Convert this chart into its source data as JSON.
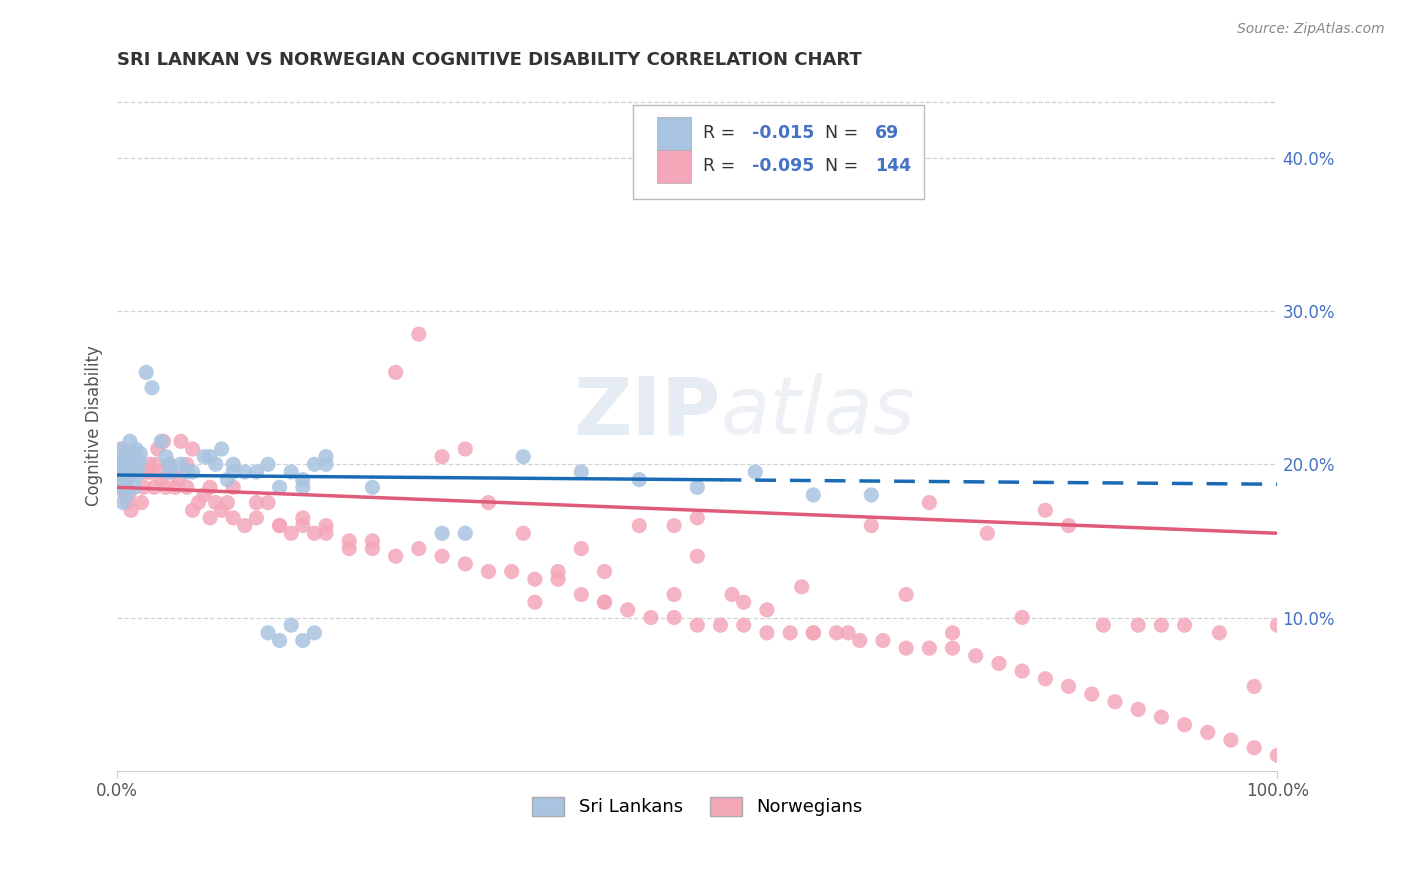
{
  "title": "SRI LANKAN VS NORWEGIAN COGNITIVE DISABILITY CORRELATION CHART",
  "source": "Source: ZipAtlas.com",
  "ylabel": "Cognitive Disability",
  "right_yticks": [
    "10.0%",
    "20.0%",
    "30.0%",
    "40.0%"
  ],
  "right_ytick_vals": [
    0.1,
    0.2,
    0.3,
    0.4
  ],
  "watermark_zip": "ZIP",
  "watermark_atlas": "atlas",
  "sri_lankan_color": "#a8c4e0",
  "norwegian_color": "#f4a7b9",
  "sri_lankan_line_color": "#1a6bb5",
  "norwegian_line_color": "#e05a7a",
  "xmin": 0.0,
  "xmax": 1.0,
  "ymin": 0.0,
  "ymax": 0.45,
  "background_color": "#ffffff",
  "grid_color": "#c8c8c8",
  "legend_label_sri": "Sri Lankans",
  "legend_label_nor": "Norwegians",
  "sri_lankan_x": [
    0.001,
    0.002,
    0.003,
    0.004,
    0.005,
    0.006,
    0.007,
    0.008,
    0.009,
    0.01,
    0.011,
    0.012,
    0.013,
    0.014,
    0.015,
    0.016,
    0.017,
    0.018,
    0.019,
    0.02,
    0.002,
    0.003,
    0.004,
    0.005,
    0.006,
    0.007,
    0.008,
    0.009,
    0.025,
    0.03,
    0.038,
    0.042,
    0.045,
    0.055,
    0.06,
    0.065,
    0.075,
    0.08,
    0.085,
    0.09,
    0.095,
    0.1,
    0.11,
    0.12,
    0.13,
    0.15,
    0.16,
    0.17,
    0.18,
    0.22,
    0.13,
    0.14,
    0.15,
    0.16,
    0.17,
    0.045,
    0.1,
    0.14,
    0.16,
    0.18,
    0.28,
    0.3,
    0.35,
    0.4,
    0.45,
    0.5,
    0.55,
    0.6,
    0.65
  ],
  "sri_lankan_y": [
    0.19,
    0.185,
    0.2,
    0.195,
    0.21,
    0.188,
    0.205,
    0.192,
    0.198,
    0.202,
    0.215,
    0.208,
    0.195,
    0.2,
    0.185,
    0.21,
    0.193,
    0.198,
    0.202,
    0.207,
    0.185,
    0.195,
    0.202,
    0.175,
    0.195,
    0.185,
    0.18,
    0.195,
    0.26,
    0.25,
    0.215,
    0.205,
    0.2,
    0.2,
    0.195,
    0.195,
    0.205,
    0.205,
    0.2,
    0.21,
    0.19,
    0.2,
    0.195,
    0.195,
    0.2,
    0.195,
    0.185,
    0.2,
    0.205,
    0.185,
    0.09,
    0.085,
    0.095,
    0.085,
    0.09,
    0.195,
    0.195,
    0.185,
    0.19,
    0.2,
    0.155,
    0.155,
    0.205,
    0.195,
    0.19,
    0.185,
    0.195,
    0.18,
    0.18
  ],
  "norwegian_x": [
    0.001,
    0.002,
    0.003,
    0.004,
    0.005,
    0.006,
    0.007,
    0.008,
    0.009,
    0.01,
    0.011,
    0.012,
    0.003,
    0.004,
    0.005,
    0.006,
    0.007,
    0.008,
    0.009,
    0.01,
    0.021,
    0.022,
    0.023,
    0.025,
    0.027,
    0.028,
    0.03,
    0.032,
    0.033,
    0.035,
    0.038,
    0.04,
    0.042,
    0.045,
    0.047,
    0.05,
    0.053,
    0.055,
    0.06,
    0.065,
    0.065,
    0.07,
    0.075,
    0.08,
    0.085,
    0.09,
    0.095,
    0.1,
    0.11,
    0.12,
    0.13,
    0.14,
    0.15,
    0.16,
    0.17,
    0.18,
    0.2,
    0.22,
    0.24,
    0.26,
    0.28,
    0.3,
    0.32,
    0.35,
    0.38,
    0.4,
    0.42,
    0.45,
    0.48,
    0.5,
    0.53,
    0.56,
    0.59,
    0.6,
    0.63,
    0.65,
    0.68,
    0.7,
    0.72,
    0.75,
    0.78,
    0.8,
    0.82,
    0.85,
    0.88,
    0.9,
    0.92,
    0.95,
    0.98,
    1.0,
    0.04,
    0.06,
    0.08,
    0.1,
    0.12,
    0.14,
    0.16,
    0.18,
    0.2,
    0.22,
    0.24,
    0.26,
    0.28,
    0.3,
    0.32,
    0.34,
    0.36,
    0.38,
    0.4,
    0.42,
    0.44,
    0.46,
    0.48,
    0.5,
    0.52,
    0.54,
    0.56,
    0.58,
    0.6,
    0.62,
    0.64,
    0.66,
    0.68,
    0.7,
    0.72,
    0.74,
    0.76,
    0.78,
    0.8,
    0.82,
    0.84,
    0.86,
    0.88,
    0.9,
    0.92,
    0.94,
    0.96,
    0.98,
    1.0,
    0.5,
    0.36,
    0.42,
    0.48,
    0.54
  ],
  "norwegian_y": [
    0.185,
    0.19,
    0.195,
    0.188,
    0.2,
    0.192,
    0.198,
    0.185,
    0.175,
    0.18,
    0.195,
    0.17,
    0.21,
    0.185,
    0.2,
    0.182,
    0.195,
    0.19,
    0.192,
    0.205,
    0.175,
    0.195,
    0.185,
    0.195,
    0.195,
    0.2,
    0.195,
    0.185,
    0.2,
    0.21,
    0.19,
    0.195,
    0.185,
    0.2,
    0.195,
    0.185,
    0.19,
    0.215,
    0.185,
    0.21,
    0.17,
    0.175,
    0.18,
    0.165,
    0.175,
    0.17,
    0.175,
    0.165,
    0.16,
    0.165,
    0.175,
    0.16,
    0.155,
    0.165,
    0.155,
    0.16,
    0.15,
    0.145,
    0.26,
    0.285,
    0.205,
    0.21,
    0.175,
    0.155,
    0.13,
    0.145,
    0.13,
    0.16,
    0.16,
    0.165,
    0.115,
    0.105,
    0.12,
    0.09,
    0.09,
    0.16,
    0.115,
    0.175,
    0.09,
    0.155,
    0.1,
    0.17,
    0.16,
    0.095,
    0.095,
    0.095,
    0.095,
    0.09,
    0.055,
    0.095,
    0.215,
    0.2,
    0.185,
    0.185,
    0.175,
    0.16,
    0.16,
    0.155,
    0.145,
    0.15,
    0.14,
    0.145,
    0.14,
    0.135,
    0.13,
    0.13,
    0.125,
    0.125,
    0.115,
    0.11,
    0.105,
    0.1,
    0.1,
    0.095,
    0.095,
    0.095,
    0.09,
    0.09,
    0.09,
    0.09,
    0.085,
    0.085,
    0.08,
    0.08,
    0.08,
    0.075,
    0.07,
    0.065,
    0.06,
    0.055,
    0.05,
    0.045,
    0.04,
    0.035,
    0.03,
    0.025,
    0.02,
    0.015,
    0.01,
    0.14,
    0.11,
    0.11,
    0.115,
    0.11
  ]
}
